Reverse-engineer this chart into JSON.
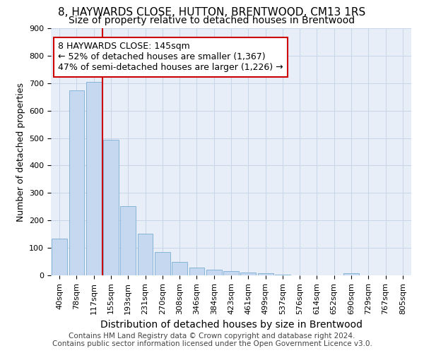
{
  "title": "8, HAYWARDS CLOSE, HUTTON, BRENTWOOD, CM13 1RS",
  "subtitle": "Size of property relative to detached houses in Brentwood",
  "xlabel": "Distribution of detached houses by size in Brentwood",
  "ylabel": "Number of detached properties",
  "footer_line1": "Contains HM Land Registry data © Crown copyright and database right 2024.",
  "footer_line2": "Contains public sector information licensed under the Open Government Licence v3.0.",
  "bin_labels": [
    "40sqm",
    "78sqm",
    "117sqm",
    "155sqm",
    "193sqm",
    "231sqm",
    "270sqm",
    "308sqm",
    "346sqm",
    "384sqm",
    "423sqm",
    "461sqm",
    "499sqm",
    "537sqm",
    "576sqm",
    "614sqm",
    "652sqm",
    "690sqm",
    "729sqm",
    "767sqm",
    "805sqm"
  ],
  "bar_heights": [
    135,
    675,
    705,
    495,
    252,
    152,
    85,
    50,
    28,
    20,
    15,
    10,
    7,
    2,
    1,
    1,
    1,
    8,
    0,
    0,
    0
  ],
  "bar_color": "#c5d8f0",
  "bar_edge_color": "#7aadd4",
  "vline_color": "#cc0000",
  "vline_pos": 2.5,
  "annotation_line1": "8 HAYWARDS CLOSE: 145sqm",
  "annotation_line2": "← 52% of detached houses are smaller (1,367)",
  "annotation_line3": "47% of semi-detached houses are larger (1,226) →",
  "annotation_box_edge_color": "#cc0000",
  "annotation_box_face_color": "#ffffff",
  "ylim": [
    0,
    900
  ],
  "yticks": [
    0,
    100,
    200,
    300,
    400,
    500,
    600,
    700,
    800,
    900
  ],
  "grid_color": "#c8d4e8",
  "bg_color": "#e8eef8",
  "title_fontsize": 11,
  "subtitle_fontsize": 10,
  "xlabel_fontsize": 10,
  "ylabel_fontsize": 9,
  "tick_fontsize": 8,
  "annotation_fontsize": 9,
  "footer_fontsize": 7.5
}
